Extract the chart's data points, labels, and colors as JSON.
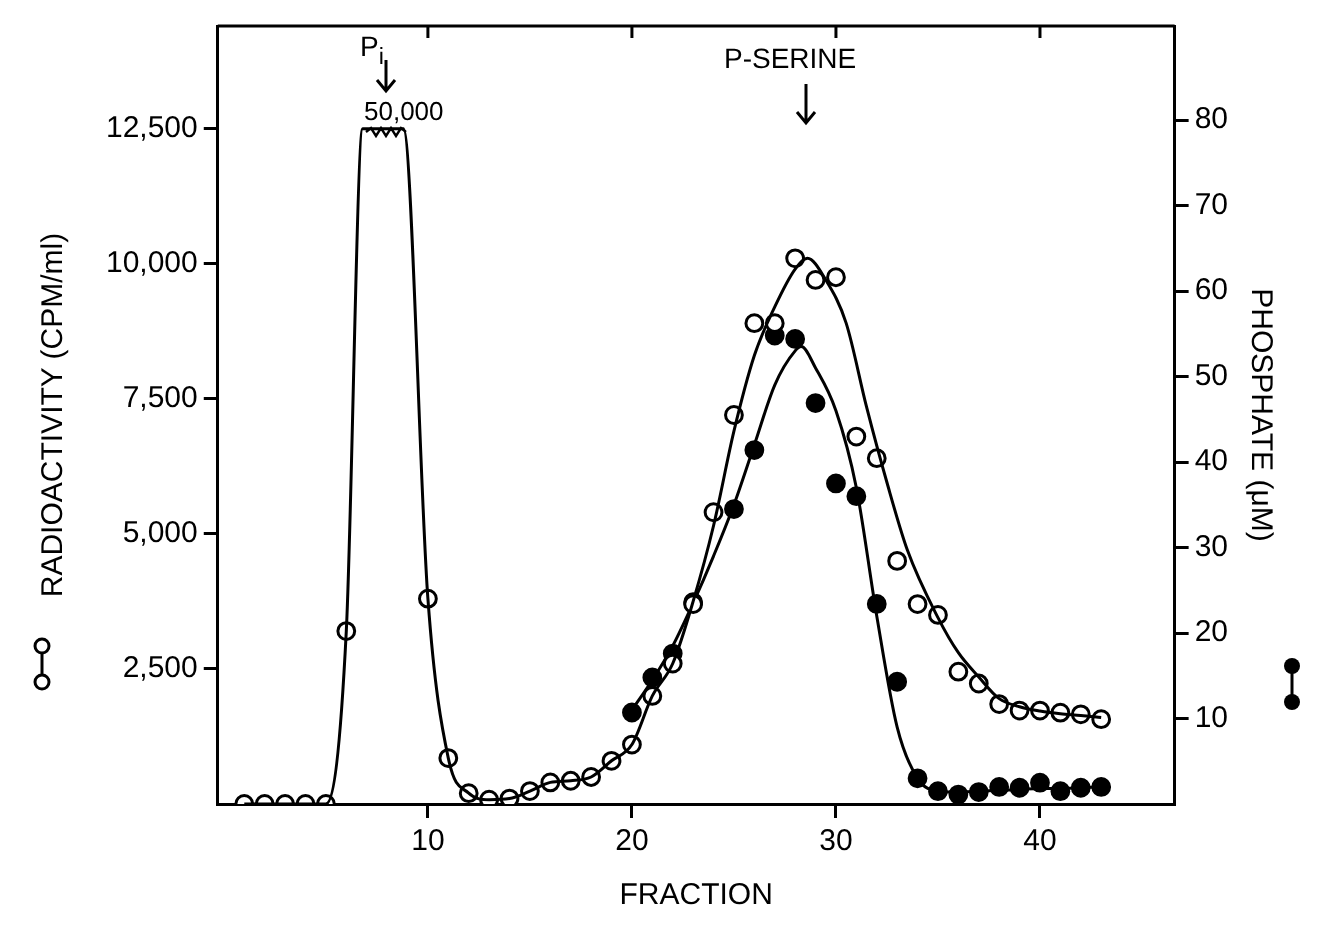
{
  "chart_data": {
    "type": "line",
    "xlabel": "FRACTION",
    "ylabel": "RADIOACTIVITY (CPM/ml)",
    "y2label": "PHOSPHATE (μM)",
    "xlim": [
      -0.3,
      46.6
    ],
    "xticks": [
      10,
      20,
      30,
      40
    ],
    "ylim": [
      0,
      14400
    ],
    "yticks": [
      {
        "value": 2500,
        "label": "2,500"
      },
      {
        "value": 5000,
        "label": "5,000"
      },
      {
        "value": 7500,
        "label": "7,500"
      },
      {
        "value": 10000,
        "label": "10,000"
      },
      {
        "value": 12500,
        "label": "12,500"
      }
    ],
    "y2lim": [
      0,
      91
    ],
    "y2ticks": [
      10,
      20,
      30,
      40,
      50,
      60,
      70,
      80
    ],
    "grid": false,
    "legend": false,
    "series": [
      {
        "marker": "none",
        "color": "#000000",
        "x": [
          1,
          2,
          3,
          4,
          5,
          6,
          6.8,
          8.8,
          10,
          11,
          12,
          13,
          14,
          15,
          16,
          17,
          18,
          19,
          20,
          21,
          22,
          23,
          24,
          25,
          26,
          27,
          28,
          28.6,
          29.5,
          30.5,
          31.5,
          32.5,
          33.5,
          35,
          36,
          37,
          38,
          39,
          40,
          41,
          42,
          43
        ],
        "values": [
          0,
          0,
          0,
          0,
          0,
          3200,
          12500,
          12500,
          3800,
          850,
          200,
          80,
          100,
          240,
          400,
          430,
          500,
          800,
          1100,
          2000,
          2600,
          3750,
          5150,
          6900,
          8300,
          9200,
          9900,
          10100,
          9700,
          8900,
          7350,
          5950,
          4700,
          3450,
          2800,
          2350,
          1950,
          1800,
          1720,
          1670,
          1640,
          1600
        ]
      },
      {
        "type": "scatter",
        "marker": "circle",
        "color": "#000000",
        "x": [
          1,
          2,
          3,
          4,
          5,
          6,
          10,
          11,
          12,
          13,
          14,
          15,
          16,
          17,
          18,
          19,
          20,
          21,
          22,
          23,
          24,
          25,
          26,
          27,
          28,
          29,
          30,
          31,
          32,
          33,
          34,
          35,
          36,
          37,
          38,
          39,
          40,
          41,
          42,
          43
        ],
        "values": [
          0,
          0,
          0,
          0,
          0,
          3200,
          3800,
          850,
          200,
          80,
          100,
          240,
          400,
          430,
          500,
          800,
          1100,
          2000,
          2600,
          3700,
          5400,
          7200,
          8900,
          8900,
          10100,
          9700,
          9750,
          6800,
          6400,
          4500,
          3700,
          3500,
          2450,
          2230,
          1850,
          1730,
          1730,
          1690,
          1660,
          1570
        ]
      },
      {
        "axis": "y2",
        "marker": "none",
        "color": "#000000",
        "x": [
          20,
          21,
          22,
          23,
          24,
          25,
          26,
          27,
          28,
          28.3,
          29,
          30,
          31,
          32,
          33,
          34,
          35,
          36,
          37,
          38,
          39,
          40,
          41,
          42,
          43
        ],
        "values": [
          11,
          14.5,
          18.5,
          23.5,
          29,
          35,
          42,
          49,
          53,
          53.5,
          51,
          46,
          37,
          22,
          9,
          3,
          1.5,
          1.4,
          1.5,
          1.6,
          1.7,
          1.8,
          1.8,
          1.9,
          2
        ]
      },
      {
        "type": "scatter",
        "axis": "y2",
        "marker": "circle",
        "color": "#000000",
        "x": [
          20,
          21,
          22,
          23,
          25,
          26,
          27,
          28,
          29,
          30,
          31,
          32,
          33,
          34,
          35,
          36,
          37,
          38,
          39,
          40,
          41,
          42,
          43
        ],
        "values": [
          10.7,
          14.8,
          17.6,
          23.6,
          34.5,
          41.4,
          54.8,
          54.4,
          46.9,
          37.5,
          36,
          23.4,
          14.3,
          3,
          1.5,
          1.1,
          1.4,
          2,
          1.9,
          2.5,
          1.5,
          1.9,
          2
        ]
      }
    ],
    "annotations": [
      "P$_{i}$",
      "50,000",
      "P-SERINE"
    ]
  }
}
